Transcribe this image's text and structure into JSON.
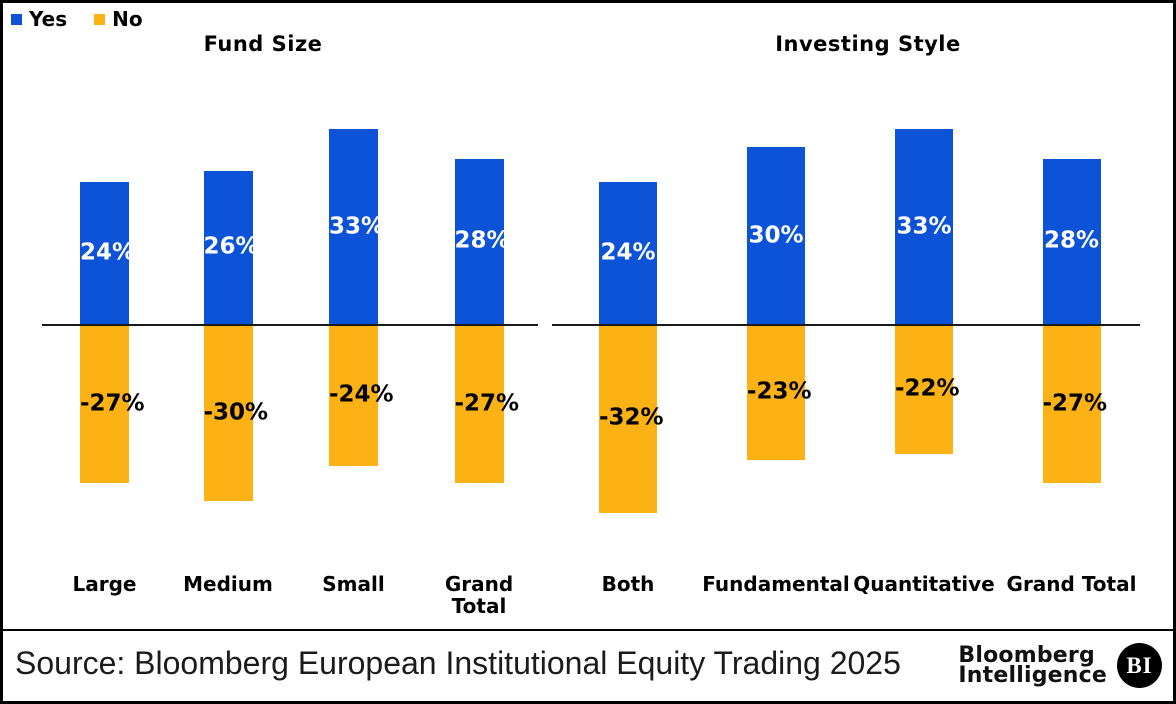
{
  "legend": [
    {
      "label": "Yes",
      "color": "#0d53d8"
    },
    {
      "label": "No",
      "color": "#fcb214"
    }
  ],
  "chart_data": {
    "type": "bar",
    "orientation": "vertical-diverging",
    "value_format": "percent",
    "colors": {
      "yes": "#0d53d8",
      "no": "#fcb214"
    },
    "label_colors": {
      "yes": "#ffffff",
      "no": "#000000"
    },
    "panels": [
      {
        "title": "Fund Size",
        "categories": [
          "Large",
          "Medium",
          "Small",
          "Grand Total"
        ],
        "series": [
          {
            "name": "Yes",
            "values": [
              24,
              26,
              33,
              28
            ]
          },
          {
            "name": "No",
            "values": [
              -27,
              -30,
              -24,
              -27
            ]
          }
        ]
      },
      {
        "title": "Investing Style",
        "categories": [
          "Both",
          "Fundamental",
          "Quantitative",
          "Grand Total"
        ],
        "series": [
          {
            "name": "Yes",
            "values": [
              24,
              30,
              33,
              28
            ]
          },
          {
            "name": "No",
            "values": [
              -32,
              -23,
              -22,
              -27
            ]
          }
        ]
      }
    ],
    "axis": {
      "zero_line": true,
      "gridlines": false,
      "value_axis_hidden": true
    }
  },
  "footer": {
    "source": "Source: Bloomberg European Institutional Equity Trading 2025",
    "logo_line1": "Bloomberg",
    "logo_line2": "Intelligence",
    "logo_badge": "BI"
  }
}
